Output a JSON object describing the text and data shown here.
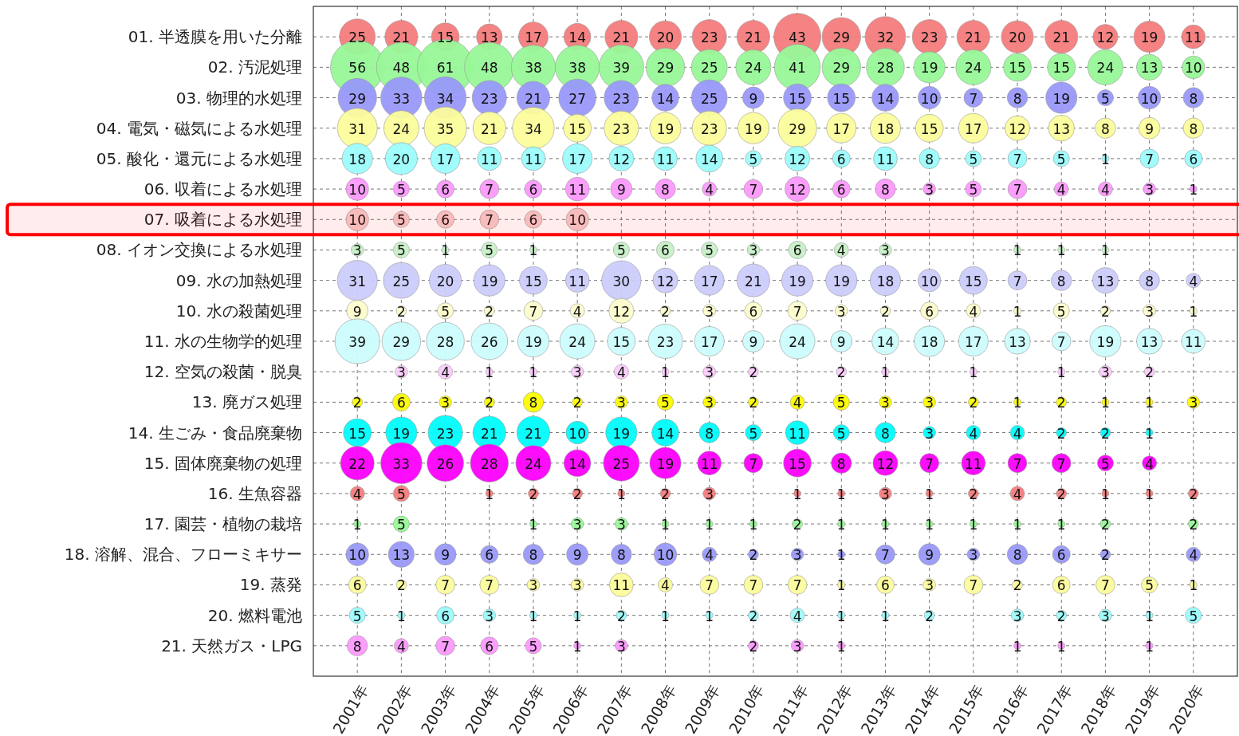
{
  "chart_data": {
    "type": "bubble",
    "grid": true,
    "categories": [
      "2001年",
      "2002年",
      "2003年",
      "2004年",
      "2005年",
      "2006年",
      "2007年",
      "2008年",
      "2009年",
      "2010年",
      "2011年",
      "2012年",
      "2013年",
      "2014年",
      "2015年",
      "2016年",
      "2017年",
      "2018年",
      "2019年",
      "2020年"
    ],
    "ylim": [
      22,
      0
    ],
    "yticks": [
      {
        "value": 1,
        "label": "01. 半透膜を用いた分離"
      },
      {
        "value": 2,
        "label": "02. 汚泥処理"
      },
      {
        "value": 3,
        "label": "03. 物理的水処理"
      },
      {
        "value": 4,
        "label": "04. 電気・磁気による水処理"
      },
      {
        "value": 5,
        "label": "05. 酸化・還元による水処理"
      },
      {
        "value": 6,
        "label": "06. 収着による水処理"
      },
      {
        "value": 7,
        "label": "07. 吸着による水処理"
      },
      {
        "value": 8,
        "label": "08. イオン交換による水処理"
      },
      {
        "value": 9,
        "label": "09. 水の加熱処理"
      },
      {
        "value": 10,
        "label": "10. 水の殺菌処理"
      },
      {
        "value": 11,
        "label": "11. 水の生物学的処理"
      },
      {
        "value": 12,
        "label": "12. 空気の殺菌・脱臭"
      },
      {
        "value": 13,
        "label": "13. 廃ガス処理"
      },
      {
        "value": 14,
        "label": "14. 生ごみ・食品廃棄物"
      },
      {
        "value": 15,
        "label": "15. 固体廃棄物の処理"
      },
      {
        "value": 16,
        "label": "16. 生魚容器"
      },
      {
        "value": 17,
        "label": "17. 園芸・植物の栽培"
      },
      {
        "value": 18,
        "label": "18. 溶解、混合、フローミキサー"
      },
      {
        "value": 19,
        "label": "19. 蒸発"
      },
      {
        "value": 20,
        "label": "20. 燃料電池"
      },
      {
        "value": 21,
        "label": "21. 天然ガス・LPG"
      }
    ],
    "series": [
      {
        "color": "#f47c7c",
        "values": [
          1,
          1,
          1,
          1,
          1,
          1,
          1,
          1,
          1,
          1,
          1,
          1,
          1,
          1,
          1,
          1,
          1,
          1,
          1,
          1
        ],
        "sizes": [
          25,
          21,
          15,
          13,
          17,
          14,
          21,
          20,
          23,
          21,
          43,
          29,
          32,
          23,
          21,
          20,
          21,
          12,
          19,
          11
        ],
        "value_labels": [
          "25",
          "21",
          "15",
          "13",
          "17",
          "14",
          "21",
          "20",
          "23",
          "21",
          "43",
          "29",
          "32",
          "23",
          "21",
          "20",
          "21",
          "12",
          "19",
          "11"
        ]
      },
      {
        "color": "#98f898",
        "values": [
          2,
          2,
          2,
          2,
          2,
          2,
          2,
          2,
          2,
          2,
          2,
          2,
          2,
          2,
          2,
          2,
          2,
          2,
          2,
          2
        ],
        "sizes": [
          56,
          48,
          61,
          48,
          38,
          38,
          39,
          29,
          25,
          24,
          41,
          29,
          28,
          19,
          24,
          15,
          15,
          24,
          13,
          10
        ],
        "value_labels": [
          "56",
          "48",
          "61",
          "48",
          "38",
          "38",
          "39",
          "29",
          "25",
          "24",
          "41",
          "29",
          "28",
          "19",
          "24",
          "15",
          "15",
          "24",
          "13",
          "10"
        ]
      },
      {
        "color": "#9999fa",
        "values": [
          3,
          3,
          3,
          3,
          3,
          3,
          3,
          3,
          3,
          3,
          3,
          3,
          3,
          3,
          3,
          3,
          3,
          3,
          3,
          3
        ],
        "sizes": [
          29,
          33,
          34,
          23,
          21,
          27,
          23,
          14,
          25,
          9,
          15,
          15,
          14,
          10,
          7,
          8,
          19,
          5,
          10,
          8
        ],
        "value_labels": [
          "29",
          "33",
          "34",
          "23",
          "21",
          "27",
          "23",
          "14",
          "25",
          "9",
          "15",
          "15",
          "14",
          "10",
          "7",
          "8",
          "19",
          "5",
          "10",
          "8"
        ]
      },
      {
        "color": "#fcfc9c",
        "values": [
          4,
          4,
          4,
          4,
          4,
          4,
          4,
          4,
          4,
          4,
          4,
          4,
          4,
          4,
          4,
          4,
          4,
          4,
          4,
          4
        ],
        "sizes": [
          31,
          24,
          35,
          21,
          34,
          15,
          23,
          19,
          23,
          19,
          29,
          17,
          18,
          15,
          17,
          12,
          13,
          8,
          9,
          8
        ],
        "value_labels": [
          "31",
          "24",
          "35",
          "21",
          "34",
          "15",
          "23",
          "19",
          "23",
          "19",
          "29",
          "17",
          "18",
          "15",
          "17",
          "12",
          "13",
          "8",
          "9",
          "8"
        ]
      },
      {
        "color": "#9cfcfc",
        "values": [
          5,
          5,
          5,
          5,
          5,
          5,
          5,
          5,
          5,
          5,
          5,
          5,
          5,
          5,
          5,
          5,
          5,
          5,
          5,
          5
        ],
        "sizes": [
          18,
          20,
          17,
          11,
          11,
          17,
          12,
          11,
          14,
          5,
          12,
          6,
          11,
          8,
          5,
          7,
          5,
          1,
          7,
          6
        ],
        "value_labels": [
          "18",
          "20",
          "17",
          "11",
          "11",
          "17",
          "12",
          "11",
          "14",
          "5",
          "12",
          "6",
          "11",
          "8",
          "5",
          "7",
          "5",
          "1",
          "7",
          "6"
        ]
      },
      {
        "color": "#fc99fc",
        "values": [
          6,
          6,
          6,
          6,
          6,
          6,
          6,
          6,
          6,
          6,
          6,
          6,
          6,
          6,
          6,
          6,
          6,
          6,
          6,
          6
        ],
        "sizes": [
          10,
          5,
          6,
          7,
          6,
          11,
          9,
          8,
          4,
          7,
          12,
          6,
          8,
          3,
          5,
          7,
          4,
          4,
          3,
          1
        ],
        "value_labels": [
          "10",
          "5",
          "6",
          "7",
          "6",
          "11",
          "9",
          "8",
          "4",
          "7",
          "12",
          "6",
          "8",
          "3",
          "5",
          "7",
          "4",
          "4",
          "3",
          "1"
        ]
      },
      {
        "color": "#f8c8c8",
        "values": [
          7,
          7,
          7,
          7,
          7,
          7,
          null,
          null,
          null,
          null,
          null,
          null,
          null,
          null,
          null,
          null,
          null,
          null,
          null,
          null
        ],
        "sizes": [
          10,
          5,
          6,
          7,
          6,
          10,
          null,
          null,
          null,
          null,
          null,
          null,
          null,
          null,
          null,
          null,
          null,
          null,
          null,
          null
        ],
        "value_labels": [
          "10",
          "5",
          "6",
          "7",
          "6",
          "10",
          null,
          null,
          null,
          null,
          null,
          null,
          null,
          null,
          null,
          null,
          null,
          null,
          null,
          null
        ]
      },
      {
        "color": "#c8f0c8",
        "values": [
          8,
          8,
          8,
          8,
          8,
          null,
          8,
          8,
          8,
          8,
          8,
          8,
          8,
          null,
          null,
          8,
          8,
          8,
          null,
          null
        ],
        "sizes": [
          3,
          5,
          1,
          5,
          1,
          null,
          5,
          6,
          5,
          3,
          6,
          4,
          3,
          null,
          null,
          1,
          1,
          1,
          null,
          null
        ],
        "value_labels": [
          "3",
          "5",
          "1",
          "5",
          "1",
          null,
          "5",
          "6",
          "5",
          "3",
          "6",
          "4",
          "3",
          null,
          null,
          "1",
          "1",
          "1",
          null,
          null
        ]
      },
      {
        "color": "#ccccfc",
        "values": [
          9,
          9,
          9,
          9,
          9,
          9,
          9,
          9,
          9,
          9,
          9,
          9,
          9,
          9,
          9,
          9,
          9,
          9,
          9,
          9
        ],
        "sizes": [
          31,
          25,
          20,
          19,
          15,
          11,
          30,
          12,
          17,
          21,
          19,
          19,
          18,
          10,
          15,
          7,
          8,
          13,
          8,
          4
        ],
        "value_labels": [
          "31",
          "25",
          "20",
          "19",
          "15",
          "11",
          "30",
          "12",
          "17",
          "21",
          "19",
          "19",
          "18",
          "10",
          "15",
          "7",
          "8",
          "13",
          "8",
          "4"
        ]
      },
      {
        "color": "#fcfccc",
        "values": [
          10,
          10,
          10,
          10,
          10,
          10,
          10,
          10,
          10,
          10,
          10,
          10,
          10,
          10,
          10,
          10,
          10,
          10,
          10,
          10
        ],
        "sizes": [
          9,
          2,
          5,
          2,
          7,
          4,
          12,
          2,
          3,
          6,
          7,
          3,
          2,
          6,
          4,
          1,
          5,
          2,
          3,
          1
        ],
        "value_labels": [
          "9",
          "2",
          "5",
          "2",
          "7",
          "4",
          "12",
          "2",
          "3",
          "6",
          "7",
          "3",
          "2",
          "6",
          "4",
          "1",
          "5",
          "2",
          "3",
          "1"
        ]
      },
      {
        "color": "#ccfcfc",
        "values": [
          11,
          11,
          11,
          11,
          11,
          11,
          11,
          11,
          11,
          11,
          11,
          11,
          11,
          11,
          11,
          11,
          11,
          11,
          11,
          11
        ],
        "sizes": [
          39,
          29,
          28,
          26,
          19,
          24,
          15,
          23,
          17,
          9,
          24,
          9,
          14,
          18,
          17,
          13,
          7,
          19,
          13,
          11
        ],
        "value_labels": [
          "39",
          "29",
          "28",
          "26",
          "19",
          "24",
          "15",
          "23",
          "17",
          "9",
          "24",
          "9",
          "14",
          "18",
          "17",
          "13",
          "7",
          "19",
          "13",
          "11"
        ]
      },
      {
        "color": "#fcccfc",
        "values": [
          null,
          12,
          12,
          12,
          12,
          12,
          12,
          12,
          12,
          12,
          null,
          12,
          12,
          null,
          12,
          null,
          12,
          12,
          12,
          null
        ],
        "sizes": [
          null,
          3,
          4,
          1,
          1,
          3,
          4,
          1,
          3,
          2,
          null,
          2,
          1,
          null,
          1,
          null,
          1,
          3,
          2,
          null
        ],
        "value_labels": [
          null,
          "3",
          "4",
          "1",
          "1",
          "3",
          "4",
          "1",
          "3",
          "2",
          null,
          "2",
          "1",
          null,
          "1",
          null,
          "1",
          "3",
          "2",
          null
        ]
      },
      {
        "color": "#fcfc00",
        "values": [
          13,
          13,
          13,
          13,
          13,
          13,
          13,
          13,
          13,
          13,
          13,
          13,
          13,
          13,
          13,
          13,
          13,
          13,
          13,
          13
        ],
        "sizes": [
          2,
          6,
          3,
          2,
          8,
          2,
          3,
          5,
          3,
          2,
          4,
          5,
          3,
          3,
          2,
          1,
          2,
          1,
          1,
          3
        ],
        "value_labels": [
          "2",
          "6",
          "3",
          "2",
          "8",
          "2",
          "3",
          "5",
          "3",
          "2",
          "4",
          "5",
          "3",
          "3",
          "2",
          "1",
          "2",
          "1",
          "1",
          "3"
        ]
      },
      {
        "color": "#00fcfc",
        "values": [
          14,
          14,
          14,
          14,
          14,
          14,
          14,
          14,
          14,
          14,
          14,
          14,
          14,
          14,
          14,
          14,
          14,
          14,
          14,
          null
        ],
        "sizes": [
          15,
          19,
          23,
          21,
          21,
          10,
          19,
          14,
          8,
          5,
          11,
          5,
          8,
          3,
          4,
          4,
          2,
          2,
          1,
          null
        ],
        "value_labels": [
          "15",
          "19",
          "23",
          "21",
          "21",
          "10",
          "19",
          "14",
          "8",
          "5",
          "11",
          "5",
          "8",
          "3",
          "4",
          "4",
          "2",
          "2",
          "1",
          null
        ]
      },
      {
        "color": "#fc00fc",
        "values": [
          15,
          15,
          15,
          15,
          15,
          15,
          15,
          15,
          15,
          15,
          15,
          15,
          15,
          15,
          15,
          15,
          15,
          15,
          15,
          null
        ],
        "sizes": [
          22,
          33,
          26,
          28,
          24,
          14,
          25,
          19,
          11,
          7,
          15,
          8,
          12,
          7,
          11,
          7,
          7,
          5,
          4,
          null
        ],
        "value_labels": [
          "22",
          "33",
          "26",
          "28",
          "24",
          "14",
          "25",
          "19",
          "11",
          "7",
          "15",
          "8",
          "12",
          "7",
          "11",
          "7",
          "7",
          "5",
          "4",
          null
        ]
      },
      {
        "color": "#f47c7c",
        "values": [
          16,
          16,
          null,
          16,
          16,
          16,
          16,
          16,
          16,
          null,
          16,
          16,
          16,
          16,
          16,
          16,
          16,
          16,
          16,
          16
        ],
        "sizes": [
          4,
          5,
          null,
          1,
          2,
          2,
          1,
          2,
          3,
          null,
          1,
          1,
          3,
          1,
          2,
          4,
          2,
          1,
          1,
          2
        ],
        "value_labels": [
          "4",
          "5",
          null,
          "1",
          "2",
          "2",
          "1",
          "2",
          "3",
          null,
          "1",
          "1",
          "3",
          "1",
          "2",
          "4",
          "2",
          "1",
          "1",
          "2"
        ]
      },
      {
        "color": "#98f898",
        "values": [
          17,
          17,
          null,
          null,
          17,
          17,
          17,
          17,
          17,
          17,
          17,
          17,
          17,
          17,
          17,
          17,
          17,
          17,
          null,
          17
        ],
        "sizes": [
          1,
          5,
          null,
          null,
          1,
          3,
          3,
          1,
          1,
          1,
          2,
          1,
          1,
          1,
          1,
          1,
          1,
          2,
          null,
          2
        ],
        "value_labels": [
          "1",
          "5",
          null,
          null,
          "1",
          "3",
          "3",
          "1",
          "1",
          "1",
          "2",
          "1",
          "1",
          "1",
          "1",
          "1",
          "1",
          "2",
          null,
          "2"
        ]
      },
      {
        "color": "#9999fa",
        "values": [
          18,
          18,
          18,
          18,
          18,
          18,
          18,
          18,
          18,
          18,
          18,
          18,
          18,
          18,
          18,
          18,
          18,
          18,
          null,
          18
        ],
        "sizes": [
          10,
          13,
          9,
          6,
          8,
          9,
          8,
          10,
          4,
          2,
          3,
          1,
          7,
          9,
          3,
          8,
          6,
          2,
          null,
          4
        ],
        "value_labels": [
          "10",
          "13",
          "9",
          "6",
          "8",
          "9",
          "8",
          "10",
          "4",
          "2",
          "3",
          "1",
          "7",
          "9",
          "3",
          "8",
          "6",
          "2",
          null,
          "4"
        ]
      },
      {
        "color": "#fcfc9c",
        "values": [
          19,
          19,
          19,
          19,
          19,
          19,
          19,
          19,
          19,
          19,
          19,
          19,
          19,
          19,
          19,
          19,
          19,
          19,
          19,
          19
        ],
        "sizes": [
          6,
          2,
          7,
          7,
          3,
          3,
          11,
          4,
          7,
          7,
          7,
          1,
          6,
          3,
          7,
          2,
          6,
          7,
          5,
          1
        ],
        "value_labels": [
          "6",
          "2",
          "7",
          "7",
          "3",
          "3",
          "11",
          "4",
          "7",
          "7",
          "7",
          "1",
          "6",
          "3",
          "7",
          "2",
          "6",
          "7",
          "5",
          "1"
        ]
      },
      {
        "color": "#9cfcfc",
        "values": [
          20,
          20,
          20,
          20,
          20,
          20,
          20,
          20,
          20,
          20,
          20,
          20,
          20,
          20,
          null,
          20,
          20,
          20,
          20,
          20
        ],
        "sizes": [
          5,
          1,
          6,
          3,
          1,
          1,
          2,
          1,
          1,
          2,
          4,
          1,
          1,
          2,
          null,
          3,
          2,
          3,
          1,
          5
        ],
        "value_labels": [
          "5",
          "1",
          "6",
          "3",
          "1",
          "1",
          "2",
          "1",
          "1",
          "2",
          "4",
          "1",
          "1",
          "2",
          null,
          "3",
          "2",
          "3",
          "1",
          "5"
        ]
      },
      {
        "color": "#fc99fc",
        "values": [
          21,
          21,
          21,
          21,
          21,
          21,
          21,
          null,
          null,
          21,
          21,
          21,
          null,
          null,
          null,
          21,
          21,
          null,
          21,
          null
        ],
        "sizes": [
          8,
          4,
          7,
          6,
          5,
          1,
          3,
          null,
          null,
          2,
          3,
          1,
          null,
          null,
          null,
          1,
          1,
          null,
          1,
          null
        ],
        "value_labels": [
          "8",
          "4",
          "7",
          "6",
          "5",
          "1",
          "3",
          null,
          null,
          "2",
          "3",
          "1",
          null,
          null,
          null,
          "1",
          "1",
          null,
          "1",
          null
        ]
      }
    ],
    "bands": [
      {
        "axis": "y",
        "from": 6.5,
        "to": 7.5,
        "color": "#ff0000"
      }
    ]
  }
}
